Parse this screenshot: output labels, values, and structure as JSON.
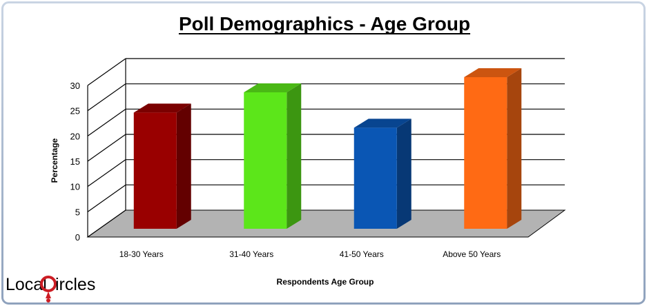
{
  "chart_data": {
    "type": "bar",
    "title": "Poll Demographics - Age Group",
    "xlabel": "Respondents Age Group",
    "ylabel": "Percentage",
    "categories": [
      "18-30 Years",
      "31-40 Years",
      "41-50 Years",
      "Above 50  Years"
    ],
    "values": [
      23,
      27,
      20,
      30
    ],
    "ylim": [
      0,
      30
    ],
    "yticks": [
      "0",
      "5",
      "10",
      "15",
      "20",
      "25",
      "30"
    ],
    "grid": true,
    "legend": "none",
    "colors": [
      "#990000",
      "#5ce61a",
      "#0a56b4",
      "#ff6a14"
    ]
  },
  "logo": {
    "part1": "Local",
    "letter": "C",
    "part2": "ircles",
    "text_color": "#3c3c3c",
    "accent_color": "#cc1d24"
  },
  "theme": {
    "frame_border": "#b9c5d6",
    "wall_color": "#ffffff",
    "floor_color": "#b3b3b3"
  }
}
